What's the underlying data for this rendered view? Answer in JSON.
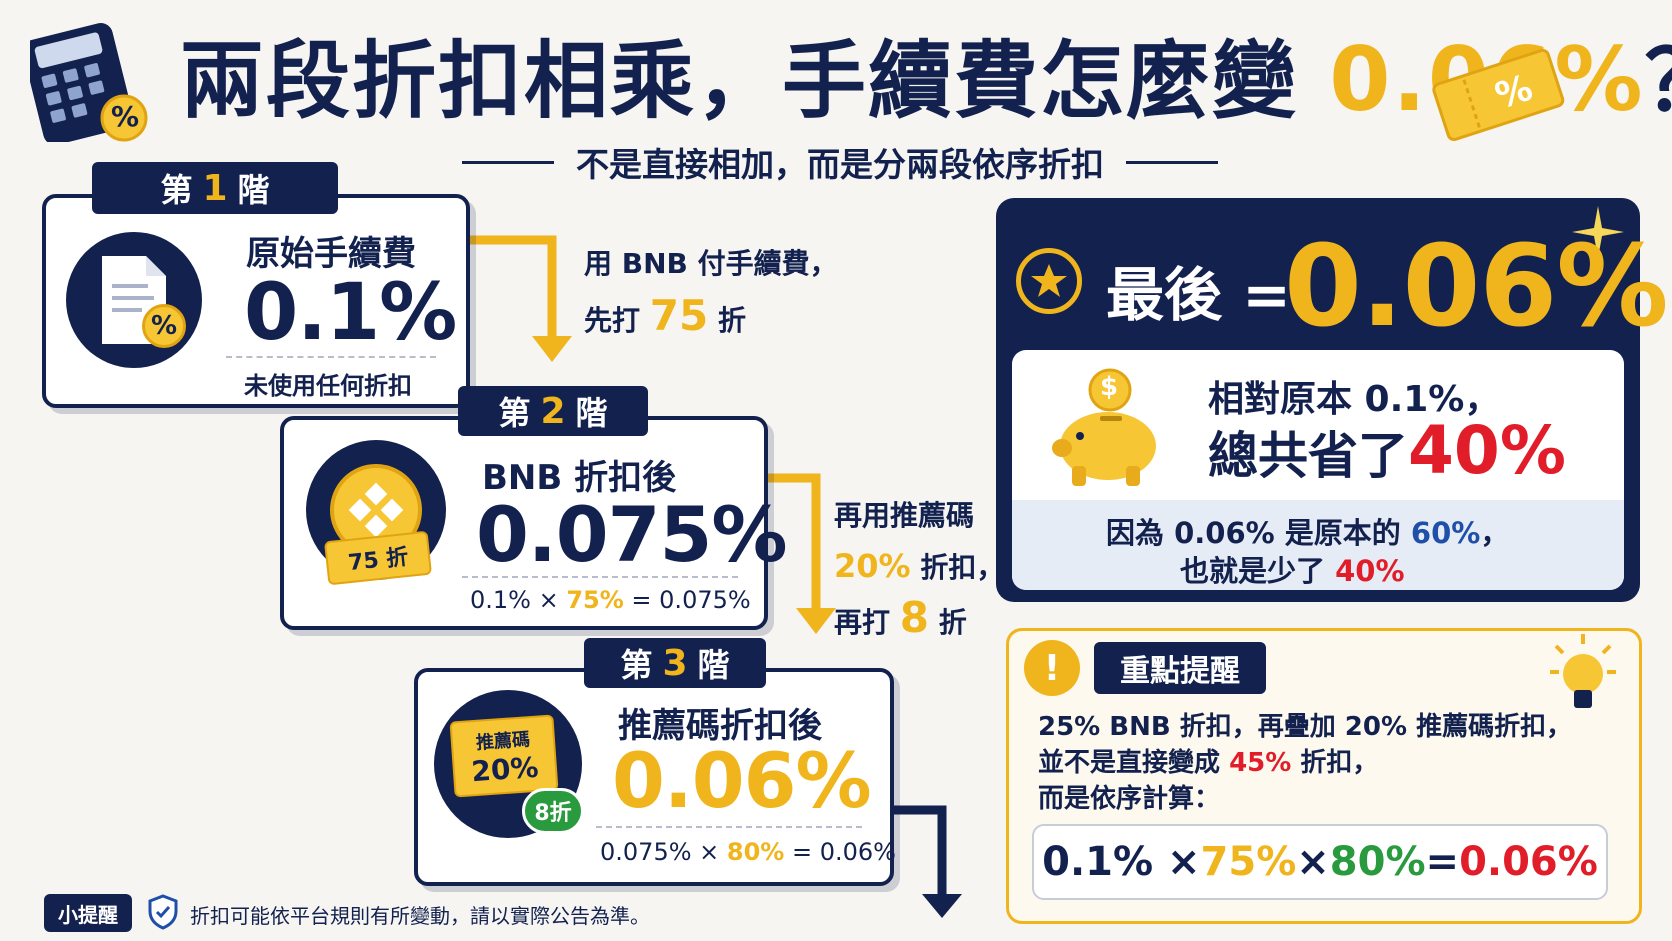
{
  "title": {
    "main": "兩段折扣相乘，手續費怎麼變 ",
    "highlight": "0.06%",
    "tail": "？"
  },
  "subtitle": "不是直接相加，而是分兩段依序折扣",
  "step1": {
    "tag_prefix": "第",
    "tag_num": "1",
    "tag_suffix": "階",
    "title": "原始手續費",
    "value": "0.1%",
    "note": "未使用任何折扣",
    "icon_text": "%"
  },
  "arrow1": {
    "line1": "用 BNB 付手續費，",
    "line2_prefix": "先打 ",
    "line2_num": "75",
    "line2_suffix": " 折"
  },
  "step2": {
    "tag_prefix": "第",
    "tag_num": "2",
    "tag_suffix": "階",
    "title": "BNB 折扣後",
    "value": "0.075%",
    "formula_a": "0.1% × ",
    "formula_b": "75%",
    "formula_c": " = 0.075%",
    "ticket": "75 折"
  },
  "arrow2": {
    "line1": "再用推薦碼",
    "line2_num": "20%",
    "line2_suffix": " 折扣，",
    "line3_prefix": "再打 ",
    "line3_num": "8",
    "line3_suffix": " 折"
  },
  "step3": {
    "tag_prefix": "第",
    "tag_num": "3",
    "tag_suffix": "階",
    "title": "推薦碼折扣後",
    "value": "0.06%",
    "formula_a": "0.075% × ",
    "formula_b": "80%",
    "formula_c": " = 0.06%",
    "ticket_top": "推薦碼",
    "ticket_bottom": "20%",
    "badge": "8折"
  },
  "final": {
    "label": "最後 =",
    "value": "0.06%",
    "line1": "相對原本 0.1%，",
    "line2_prefix": "總共省了",
    "line2_value": "40%",
    "explain1_prefix": "因為 0.06% 是原本的 ",
    "explain1_value": "60%",
    "explain1_suffix": "，",
    "explain2_prefix": "也就是少了 ",
    "explain2_value": "40%",
    "coin_symbol": "$"
  },
  "reminder": {
    "title": "重點提醒",
    "line1": "25% BNB 折扣，再疊加 20% 推薦碼折扣，",
    "line2_prefix": "並不是直接變成 ",
    "line2_value": "45%",
    "line2_suffix": " 折扣，",
    "line3": "而是依序計算：",
    "f1": "0.1% × ",
    "f2": "75%",
    "f3": " × ",
    "f4": "80%",
    "f5": " = ",
    "f6": "0.06%"
  },
  "footer": {
    "badge": "小提醒",
    "text": "折扣可能依平台規則有所變動，請以實際公告為準。"
  },
  "decor": {
    "calc_badge": "%",
    "ticket_badge": "%"
  },
  "colors": {
    "navy": "#13214f",
    "gold": "#f0b41c",
    "red": "#e11d2a",
    "green": "#2a9a3e",
    "blue": "#1f4fa8"
  }
}
